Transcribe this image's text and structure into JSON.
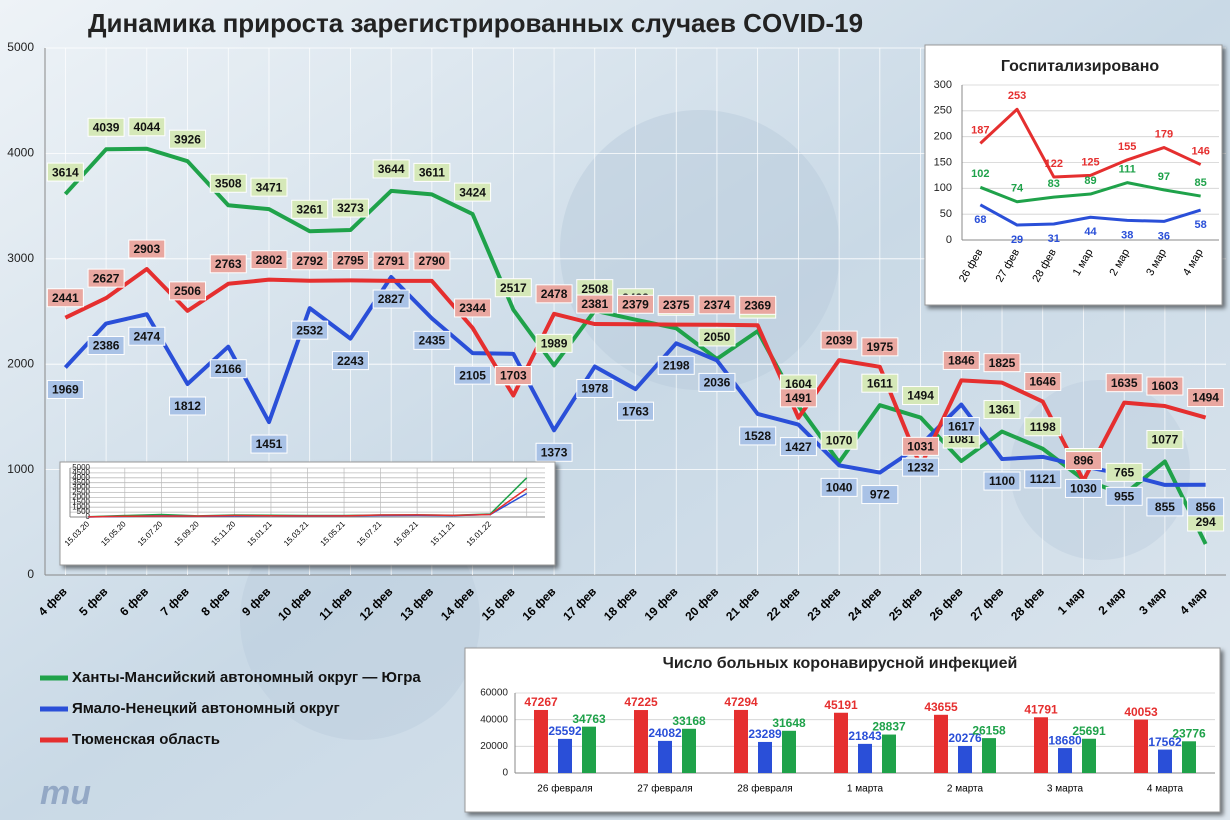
{
  "chart_data": [
    {
      "type": "line",
      "title": "Динамика прироста зарегистрированных случаев COVID-19",
      "categories": [
        "4 фев",
        "5 фев",
        "6 фев",
        "7 фев",
        "8 фев",
        "9 фев",
        "10 фев",
        "11 фев",
        "12 фев",
        "13 фев",
        "14 фев",
        "15 фев",
        "16 фев",
        "17 фев",
        "18 фев",
        "19 фев",
        "20 фев",
        "21 фев",
        "22 фев",
        "23 фев",
        "24 фев",
        "25 фев",
        "26 фев",
        "27 фев",
        "28 фев",
        "1 мар",
        "2 мар",
        "3 мар",
        "4 мар"
      ],
      "series": [
        {
          "name": "Ханты-Мансийский автономный округ — Югра",
          "color": "#1fa24a",
          "values": [
            3614,
            4039,
            4044,
            3926,
            3508,
            3471,
            3261,
            3273,
            3644,
            3611,
            3424,
            2517,
            1989,
            2508,
            2422,
            2341,
            2050,
            2314,
            1604,
            1070,
            1611,
            1494,
            1081,
            1361,
            1198,
            906,
            765,
            1077,
            294
          ]
        },
        {
          "name": "Ямало-Ненецкий автономный округ",
          "color": "#2a4fd8",
          "values": [
            1969,
            2386,
            2474,
            1812,
            2166,
            1451,
            2532,
            2243,
            2827,
            2435,
            2105,
            2098,
            1373,
            1978,
            1763,
            2198,
            2036,
            1528,
            1427,
            1040,
            972,
            1232,
            1617,
            1100,
            1121,
            1030,
            955,
            855,
            856
          ]
        },
        {
          "name": "Тюменская область",
          "color": "#e52f2f",
          "values": [
            2441,
            2627,
            2903,
            2506,
            2763,
            2802,
            2792,
            2795,
            2791,
            2790,
            2344,
            1703,
            2478,
            2381,
            2379,
            2375,
            2374,
            2369,
            1491,
            2039,
            1975,
            1031,
            1846,
            1825,
            1646,
            896,
            1635,
            1603,
            1494
          ]
        }
      ],
      "ylim": [
        0,
        5000
      ],
      "yticks": [
        0,
        1000,
        2000,
        3000,
        4000,
        5000
      ],
      "grid": true
    },
    {
      "type": "line",
      "title": "Госпитализировано",
      "categories": [
        "26 фев",
        "27 фев",
        "28 фев",
        "1 мар",
        "2 мар",
        "3 мар",
        "4 мар"
      ],
      "series": [
        {
          "color": "#1fa24a",
          "values": [
            102,
            74,
            83,
            89,
            111,
            97,
            85
          ]
        },
        {
          "color": "#2a4fd8",
          "values": [
            68,
            29,
            31,
            44,
            38,
            36,
            58
          ]
        },
        {
          "color": "#e52f2f",
          "values": [
            187,
            253,
            122,
            125,
            155,
            179,
            146
          ]
        }
      ],
      "ylim": [
        0,
        300
      ],
      "yticks": [
        0,
        50,
        100,
        150,
        200,
        250,
        300
      ],
      "grid": true
    },
    {
      "type": "bar",
      "title": "Число больных коронавирусной инфекцией",
      "categories": [
        "26 февраля",
        "27 февраля",
        "28 февраля",
        "1 марта",
        "2 марта",
        "3 марта",
        "4 марта"
      ],
      "series": [
        {
          "color": "#e52f2f",
          "values": [
            47267,
            47225,
            47294,
            45191,
            43655,
            41791,
            40053
          ]
        },
        {
          "color": "#2a4fd8",
          "values": [
            25592,
            24082,
            23289,
            21843,
            20276,
            18680,
            17562
          ]
        },
        {
          "color": "#1fa24a",
          "values": [
            34763,
            33168,
            31648,
            28837,
            26158,
            25691,
            23776
          ]
        }
      ],
      "ylim": [
        0,
        60000
      ],
      "yticks": [
        0,
        20000,
        40000,
        60000
      ],
      "grid": true
    },
    {
      "type": "line",
      "categories": [
        "15.03.20",
        "15.05.20",
        "15.07.20",
        "15.09.20",
        "15.11.20",
        "15.01.21",
        "15.03.21",
        "15.05.21",
        "15.07.21",
        "15.09.21",
        "15.11.21",
        "15.01.22",
        null
      ],
      "series": [
        {
          "color": "#1fa24a",
          "values": [
            20,
            150,
            250,
            120,
            200,
            180,
            150,
            150,
            200,
            220,
            180,
            300,
            4000
          ]
        },
        {
          "color": "#2a4fd8",
          "values": [
            5,
            60,
            120,
            80,
            100,
            120,
            100,
            110,
            150,
            160,
            140,
            250,
            2400
          ]
        },
        {
          "color": "#e52f2f",
          "values": [
            10,
            80,
            100,
            90,
            150,
            130,
            100,
            120,
            200,
            220,
            160,
            250,
            2900
          ]
        }
      ],
      "ylim": [
        0,
        5000
      ],
      "yticks": [
        0,
        500,
        1000,
        1500,
        2000,
        2500,
        3000,
        3500,
        4000,
        4500,
        5000
      ],
      "grid": true
    }
  ]
}
